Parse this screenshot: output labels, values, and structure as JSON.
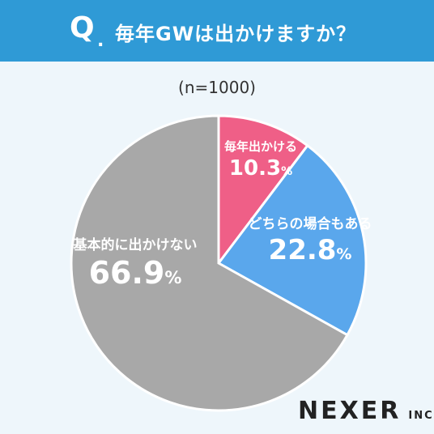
{
  "header": {
    "q_label": "Q",
    "q_dot": ".",
    "question": "毎年GWは出かけますか？",
    "bg_color": "#2f9ad6"
  },
  "sample_size": "(n=1000)",
  "logo": {
    "main": "NEXER",
    "sub": "INC."
  },
  "chart_data": {
    "type": "pie",
    "title": "毎年GWは出かけますか？",
    "slices": [
      {
        "label": "毎年出かける",
        "value": 10.3,
        "value_text": "10.3",
        "unit": "%",
        "color": "#ef5f87"
      },
      {
        "label": "どちらの場合もある",
        "value": 22.8,
        "value_text": "22.8",
        "unit": "%",
        "color": "#5aa7ec"
      },
      {
        "label": "基本的に出かけない",
        "value": 66.9,
        "value_text": "66.9",
        "unit": "%",
        "color": "#a8a8a8"
      }
    ],
    "start": "12 o'clock",
    "direction": "clockwise",
    "legend": "none"
  }
}
